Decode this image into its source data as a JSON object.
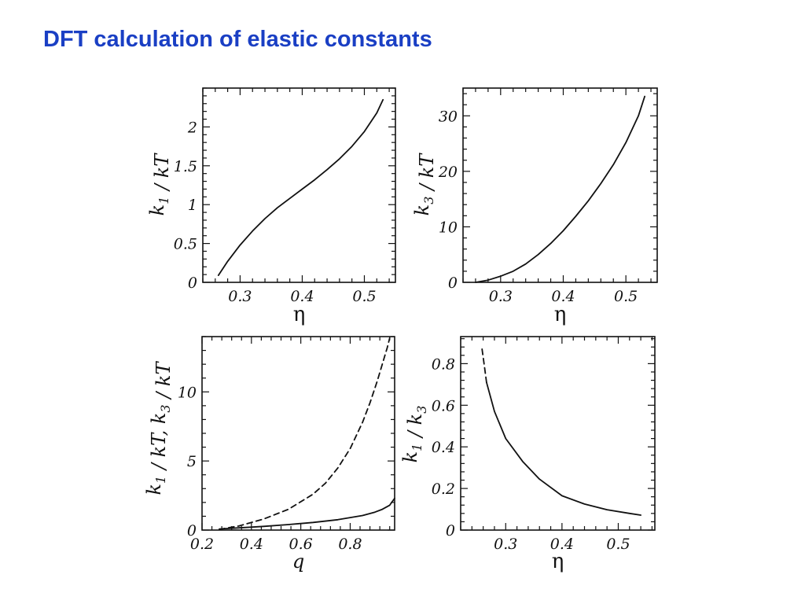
{
  "slide": {
    "title": "DFT calculation of elastic constants"
  },
  "colors": {
    "title": "#1a3fc4",
    "line": "#111111"
  },
  "chart_data": [
    {
      "type": "line",
      "xlabel": "η",
      "ylabel": {
        "main": "k",
        "sub": "1",
        "rest": " / kT"
      },
      "xlim": [
        0.24,
        0.55
      ],
      "ylim": [
        0,
        2.5
      ],
      "xticks": [
        {
          "v": 0.3,
          "t": "0.3"
        },
        {
          "v": 0.4,
          "t": "0.4"
        },
        {
          "v": 0.5,
          "t": "0.5"
        }
      ],
      "yticks": [
        {
          "v": 0,
          "t": "0"
        },
        {
          "v": 0.5,
          "t": "0.5"
        },
        {
          "v": 1,
          "t": "1"
        },
        {
          "v": 1.5,
          "t": "1.5"
        },
        {
          "v": 2,
          "t": "2"
        }
      ],
      "series": [
        {
          "style": "solid",
          "x": [
            0.265,
            0.28,
            0.3,
            0.32,
            0.34,
            0.36,
            0.38,
            0.4,
            0.42,
            0.44,
            0.46,
            0.48,
            0.5,
            0.52,
            0.53
          ],
          "y": [
            0.09,
            0.27,
            0.48,
            0.66,
            0.82,
            0.96,
            1.08,
            1.2,
            1.32,
            1.45,
            1.59,
            1.75,
            1.94,
            2.18,
            2.35
          ]
        }
      ]
    },
    {
      "type": "line",
      "xlabel": "η",
      "ylabel": {
        "main": "k",
        "sub": "3",
        "rest": " / kT"
      },
      "xlim": [
        0.24,
        0.55
      ],
      "ylim": [
        0,
        35
      ],
      "xticks": [
        {
          "v": 0.3,
          "t": "0.3"
        },
        {
          "v": 0.4,
          "t": "0.4"
        },
        {
          "v": 0.5,
          "t": "0.5"
        }
      ],
      "yticks": [
        {
          "v": 0,
          "t": "0"
        },
        {
          "v": 10,
          "t": "10"
        },
        {
          "v": 20,
          "t": "20"
        },
        {
          "v": 30,
          "t": "30"
        }
      ],
      "series": [
        {
          "style": "solid",
          "x": [
            0.26,
            0.28,
            0.3,
            0.32,
            0.34,
            0.36,
            0.38,
            0.4,
            0.42,
            0.44,
            0.46,
            0.48,
            0.5,
            0.52,
            0.53
          ],
          "y": [
            0,
            0.4,
            1.1,
            2.0,
            3.3,
            5.0,
            7.0,
            9.3,
            11.9,
            14.7,
            17.8,
            21.2,
            25.2,
            30.0,
            33.5
          ]
        }
      ]
    },
    {
      "type": "line",
      "xlabel": "q",
      "ylabel": {
        "main": "k",
        "sub": "1",
        "mid": " / kT, k",
        "sub2": "3",
        "rest": " / kT"
      },
      "xlim": [
        0.2,
        0.98
      ],
      "ylim": [
        0,
        14
      ],
      "xticks": [
        {
          "v": 0.2,
          "t": "0.2"
        },
        {
          "v": 0.4,
          "t": "0.4"
        },
        {
          "v": 0.6,
          "t": "0.6"
        },
        {
          "v": 0.8,
          "t": "0.8"
        }
      ],
      "yticks": [
        {
          "v": 0,
          "t": "0"
        },
        {
          "v": 5,
          "t": "5"
        },
        {
          "v": 10,
          "t": "10"
        }
      ],
      "series": [
        {
          "style": "solid",
          "x": [
            0.27,
            0.35,
            0.45,
            0.55,
            0.65,
            0.75,
            0.85,
            0.9,
            0.93,
            0.96,
            0.98
          ],
          "y": [
            0.08,
            0.16,
            0.27,
            0.4,
            0.55,
            0.75,
            1.05,
            1.3,
            1.5,
            1.8,
            2.3
          ]
        },
        {
          "style": "dashed",
          "x": [
            0.27,
            0.35,
            0.45,
            0.55,
            0.65,
            0.7,
            0.75,
            0.8,
            0.85,
            0.88,
            0.91,
            0.93,
            0.95,
            0.96
          ],
          "y": [
            0.05,
            0.3,
            0.8,
            1.5,
            2.6,
            3.4,
            4.5,
            5.9,
            7.8,
            9.2,
            10.8,
            12.0,
            13.2,
            13.9
          ]
        }
      ]
    },
    {
      "type": "line",
      "xlabel": "η",
      "ylabel": {
        "main": "k",
        "sub": "1",
        "mid": " / k",
        "sub2": "3",
        "rest": ""
      },
      "xlim": [
        0.22,
        0.565
      ],
      "ylim": [
        0,
        0.93
      ],
      "xticks": [
        {
          "v": 0.3,
          "t": "0.3"
        },
        {
          "v": 0.4,
          "t": "0.4"
        },
        {
          "v": 0.5,
          "t": "0.5"
        }
      ],
      "yticks": [
        {
          "v": 0,
          "t": "0"
        },
        {
          "v": 0.2,
          "t": "0.2"
        },
        {
          "v": 0.4,
          "t": "0.4"
        },
        {
          "v": 0.6,
          "t": "0.6"
        },
        {
          "v": 0.8,
          "t": "0.8"
        }
      ],
      "series": [
        {
          "style": "dashed",
          "x": [
            0.258,
            0.262,
            0.266
          ],
          "y": [
            0.87,
            0.79,
            0.71
          ]
        },
        {
          "style": "solid",
          "x": [
            0.266,
            0.28,
            0.3,
            0.33,
            0.36,
            0.4,
            0.44,
            0.48,
            0.52,
            0.54
          ],
          "y": [
            0.71,
            0.57,
            0.44,
            0.33,
            0.245,
            0.165,
            0.125,
            0.098,
            0.08,
            0.072
          ]
        }
      ]
    }
  ]
}
